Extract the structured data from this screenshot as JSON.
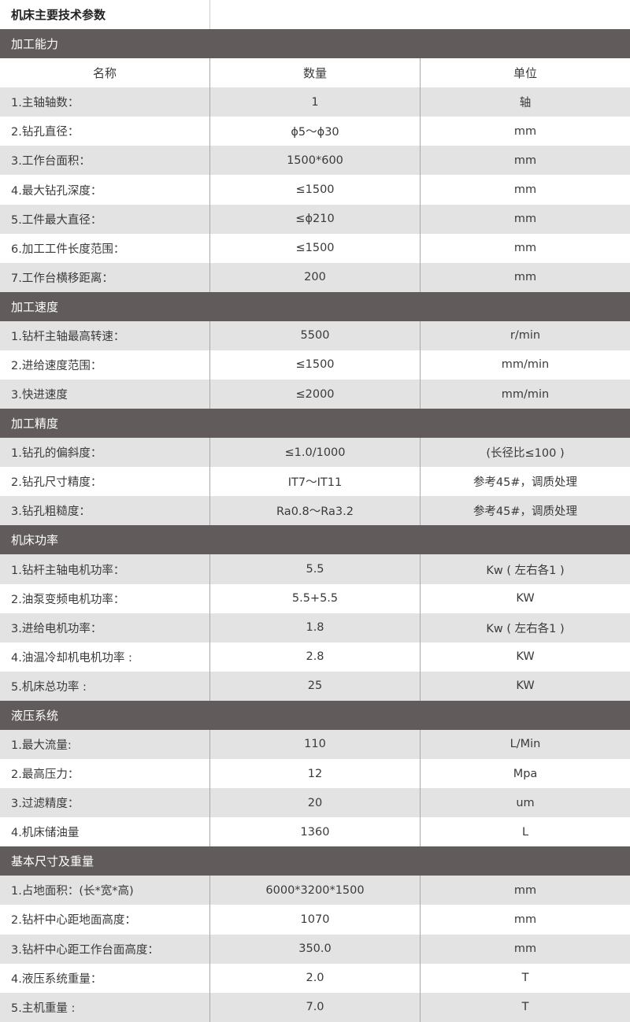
{
  "title": "机床主要技术参数",
  "column_headers": {
    "name": "名称",
    "quantity": "数量",
    "unit": "单位"
  },
  "colors": {
    "section_header_bg": "#615c5b",
    "row_gray": "#e3e3e3",
    "row_white": "#ffffff"
  },
  "sections": [
    {
      "title": "加工能力",
      "show_column_headers": true,
      "rows": [
        {
          "name": "1.主轴轴数：",
          "value": "1",
          "unit": "轴"
        },
        {
          "name": "2.钻孔直径：",
          "value": "ϕ5～ϕ30",
          "unit": "mm"
        },
        {
          "name": "3.工作台面积：",
          "value": "1500*600",
          "unit": "mm"
        },
        {
          "name": "4.最大钻孔深度：",
          "value": "≤1500",
          "unit": "mm"
        },
        {
          "name": "5.工件最大直径：",
          "value": "≤ϕ210",
          "unit": "mm"
        },
        {
          "name": "6.加工工件长度范围：",
          "value": "≤1500",
          "unit": "mm"
        },
        {
          "name": "7.工作台横移距离：",
          "value": "200",
          "unit": "mm"
        }
      ]
    },
    {
      "title": "加工速度",
      "rows": [
        {
          "name": "1.钻杆主轴最高转速：",
          "value": "5500",
          "unit": "r/min"
        },
        {
          "name": "2.进给速度范围：",
          "value": "≤1500",
          "unit": "mm/min"
        },
        {
          "name": "3.快进速度",
          "value": "≤2000",
          "unit": "mm/min"
        }
      ]
    },
    {
      "title": "加工精度",
      "rows": [
        {
          "name": "1.钻孔的偏斜度：",
          "value": "≤1.0/1000",
          "unit": "(长径比≤100 )"
        },
        {
          "name": "2.钻孔尺寸精度：",
          "value": "IT7～IT11",
          "unit": "参考45#，调质处理"
        },
        {
          "name": "3.钻孔粗糙度：",
          "value": "Ra0.8～Ra3.2",
          "unit": "参考45#，调质处理"
        }
      ]
    },
    {
      "title": "机床功率",
      "rows": [
        {
          "name": "1.钻杆主轴电机功率：",
          "value": "5.5",
          "unit": "Kw ( 左右各1 )"
        },
        {
          "name": "2.油泵变频电机功率：",
          "value": "5.5+5.5",
          "unit": "KW"
        },
        {
          "name": "3.进给电机功率：",
          "value": "1.8",
          "unit": "Kw ( 左右各1 )"
        },
        {
          "name": "4.油温冷却机电机功率 :",
          "value": "2.8",
          "unit": "KW"
        },
        {
          "name": "5.机床总功率 :",
          "value": "25",
          "unit": "KW"
        }
      ]
    },
    {
      "title": "液压系统",
      "rows": [
        {
          "name": "1.最大流量:",
          "value": "110",
          "unit": "L/Min"
        },
        {
          "name": "2.最高压力：",
          "value": "12",
          "unit": "Mpa"
        },
        {
          "name": "3.过滤精度：",
          "value": "20",
          "unit": "um"
        },
        {
          "name": "4.机床储油量",
          "value": "1360",
          "unit": "L"
        }
      ]
    },
    {
      "title": "基本尺寸及重量",
      "rows": [
        {
          "name": "1.占地面积：(长*宽*高)",
          "value": "6000*3200*1500",
          "unit": "mm"
        },
        {
          "name": "2.钻杆中心距地面高度：",
          "value": "1070",
          "unit": "mm"
        },
        {
          "name": "3.钻杆中心距工作台面高度：",
          "value": "350.0",
          "unit": "mm"
        },
        {
          "name": "4.液压系统重量：",
          "value": "2.0",
          "unit": "T"
        },
        {
          "name": "5.主机重量 :",
          "value": "7.0",
          "unit": "T"
        }
      ]
    }
  ]
}
